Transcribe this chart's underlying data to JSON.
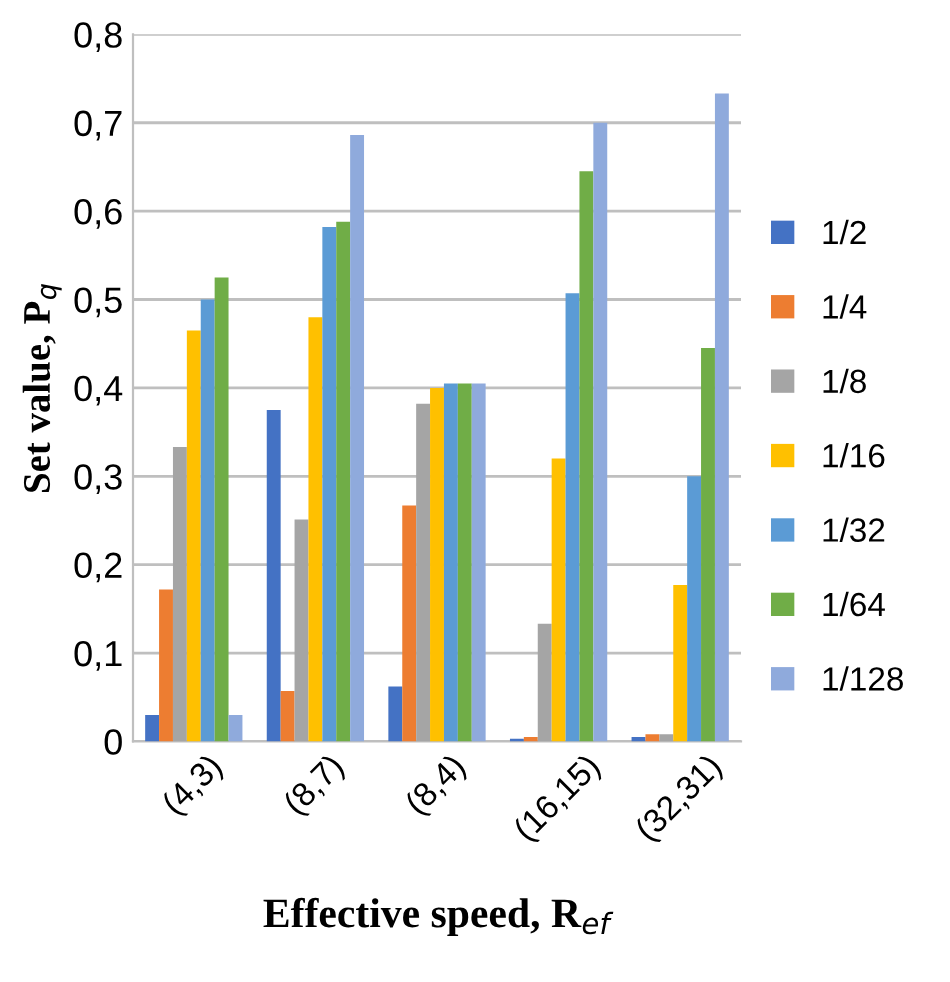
{
  "chart_data": {
    "type": "bar",
    "xlabel": "Effective speed, R$_{ef}$",
    "ylabel": "Set value, P$_{q}$",
    "categories": [
      "(4,3)",
      "(8,7)",
      "(8,4)",
      "(16,15)",
      "(32,31)"
    ],
    "series": [
      {
        "name": "1/2",
        "color": "#4472c4",
        "values": [
          0.03,
          0.375,
          0.062,
          0.003,
          0.005
        ]
      },
      {
        "name": "1/4",
        "color": "#ed7d31",
        "values": [
          0.172,
          0.057,
          0.267,
          0.005,
          0.008
        ]
      },
      {
        "name": "1/8",
        "color": "#a5a5a5",
        "values": [
          0.333,
          0.251,
          0.382,
          0.133,
          0.008
        ]
      },
      {
        "name": "1/16",
        "color": "#ffc000",
        "values": [
          0.465,
          0.48,
          0.4,
          0.32,
          0.177
        ]
      },
      {
        "name": "1/32",
        "color": "#5b9bd5",
        "values": [
          0.5,
          0.582,
          0.405,
          0.507,
          0.3
        ]
      },
      {
        "name": "1/64",
        "color": "#70ad47",
        "values": [
          0.525,
          0.588,
          0.405,
          0.645,
          0.445
        ]
      },
      {
        "name": "1/128",
        "color": "#8faadc",
        "values": [
          0.03,
          0.686,
          0.405,
          0.7,
          0.733
        ]
      }
    ],
    "ylim": [
      0,
      0.8
    ],
    "yticks": [
      0,
      {
        "value": 0.1,
        "label": "0,1"
      },
      {
        "value": 0.2,
        "label": "0,2"
      },
      {
        "value": 0.3,
        "label": "0,3"
      },
      {
        "value": 0.4,
        "label": "0,4"
      },
      {
        "value": 0.5,
        "label": "0,5"
      },
      {
        "value": 0.6,
        "label": "0,6"
      },
      {
        "value": 0.7,
        "label": "0,7"
      },
      {
        "value": 0.8,
        "label": "0,8"
      }
    ],
    "grid": "y",
    "legend": "right"
  }
}
